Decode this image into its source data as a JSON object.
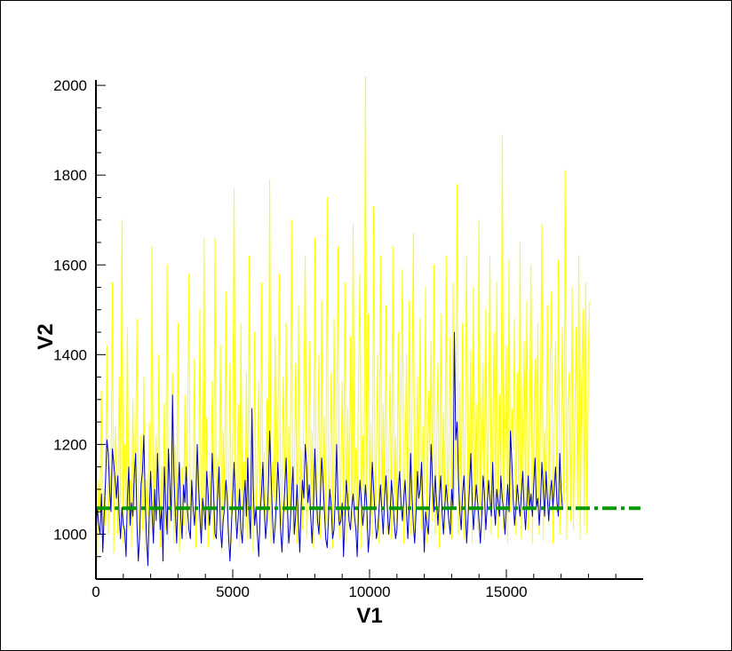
{
  "chart_data": {
    "type": "line",
    "title": "",
    "xlabel": "V1",
    "ylabel": "V2",
    "xlim": [
      0,
      20000
    ],
    "ylim": [
      900,
      2020
    ],
    "xticks": [
      0,
      5000,
      10000,
      15000
    ],
    "yticks": [
      1000,
      1200,
      1400,
      1600,
      1800,
      2000
    ],
    "grid": false,
    "series": [
      {
        "key": "raw",
        "color": "#ffff00",
        "style": "solid",
        "x_start": 0,
        "x_step": 50,
        "values": [
          1280,
          940,
          1120,
          1050,
          1320,
          960,
          1100,
          1020,
          1420,
          1000,
          1150,
          1080,
          1560,
          960,
          1240,
          1110,
          1000,
          1350,
          1040,
          1700,
          980,
          1200,
          1060,
          1460,
          1010,
          1120,
          970,
          1300,
          1050,
          1180,
          1480,
          990,
          1090,
          1220,
          1010,
          1350,
          960,
          1120,
          1040,
          1250,
          1000,
          1640,
          980,
          1100,
          1220,
          1050,
          1400,
          970,
          1150,
          1030,
          1290,
          1010,
          1600,
          990,
          1110,
          1060,
          1360,
          980,
          1200,
          1040,
          1470,
          960,
          1090,
          1150,
          1020,
          1310,
          990,
          1240,
          1580,
          1000,
          1120,
          1060,
          1390,
          970,
          1180,
          1030,
          1500,
          990,
          1080,
          1660,
          1010,
          1260,
          970,
          1140,
          1050,
          1340,
          990,
          1660,
          1020,
          1170,
          1080,
          1420,
          960,
          1230,
          1060,
          1540,
          1000,
          1110,
          1380,
          980,
          1200,
          1770,
          1030,
          1090,
          1290,
          970,
          1470,
          1050,
          1160,
          1010,
          1360,
          990,
          1620,
          1080,
          1220,
          960,
          1450,
          1040,
          1130,
          1340,
          1000,
          1560,
          1070,
          1180,
          990,
          1300,
          1030,
          1790,
          980,
          1160,
          1070,
          1440,
          1010,
          1220,
          1580,
          990,
          1100,
          1350,
          1050,
          1470,
          970,
          1240,
          1060,
          1700,
          1000,
          1140,
          1380,
          980,
          1510,
          1050,
          1190,
          1010,
          1320,
          1620,
          990,
          1110,
          1430,
          1060,
          1230,
          970,
          1660,
          1020,
          1170,
          1400,
          990,
          1520,
          1050,
          1260,
          1000,
          1750,
          1030,
          1150,
          1360,
          970,
          1480,
          1080,
          1210,
          1640,
          990,
          1120,
          1340,
          1040,
          1560,
          980,
          1280,
          1060,
          1440,
          1010,
          1690,
          1050,
          1190,
          1000,
          1370,
          1580,
          970,
          1220,
          1080,
          2030,
          1010,
          1490,
          1040,
          1250,
          990,
          1730,
          1060,
          1180,
          1400,
          980,
          1620,
          1030,
          1290,
          1070,
          1510,
          1000,
          1170,
          1360,
          990,
          1640,
          1050,
          1220,
          1010,
          1450,
          1080,
          1310,
          1590,
          980,
          1160,
          1400,
          1040,
          1520,
          1000,
          1270,
          1670,
          990,
          1130,
          1350,
          1060,
          1480,
          1010,
          1240,
          1090,
          1550,
          980,
          1320,
          1180,
          1430,
          1030,
          1600,
          1000,
          1210,
          1380,
          970,
          1490,
          1060,
          1270,
          1010,
          1620,
          1040,
          1170,
          1440,
          990,
          1560,
          1080,
          1230,
          1780,
          1000,
          1340,
          1050,
          1470,
          990,
          1250,
          1620,
          1020,
          1180,
          1410,
          980,
          1550,
          1070,
          1290,
          1010,
          1700,
          1040,
          1200,
          1380,
          990,
          1500,
          1060,
          1260,
          1620,
          1000,
          1170,
          1450,
          1030,
          1560,
          990,
          1310,
          1080,
          1890,
          1010,
          1240,
          1420,
          980,
          1610,
          1050,
          1280,
          1190,
          1480,
          1000,
          1360,
          1070,
          1650,
          990,
          1220,
          1430,
          1040,
          1520,
          1010,
          1270,
          1600,
          980,
          1190,
          1390,
          1060,
          1470,
          1000,
          1310,
          1690,
          990,
          1230,
          1080,
          1510,
          1020,
          1370,
          1540,
          980,
          1250,
          1430,
          1050,
          1610,
          1000,
          1200,
          1460,
          1070,
          1810,
          990,
          1280,
          1360,
          1030,
          1550,
          1010,
          1240,
          1460,
          1060,
          1620,
          990,
          1330,
          1500,
          1020,
          1560,
          1000,
          1420,
          1520
        ]
      },
      {
        "key": "smoothed",
        "color": "#0000cc",
        "style": "solid",
        "x_start": 0,
        "x_step": 50,
        "values": [
          1000,
          1060,
          1020,
          1000,
          1090,
          960,
          1040,
          1120,
          1210,
          1180,
          1100,
          1050,
          1190,
          1160,
          1120,
          1080,
          1130,
          1040,
          990,
          1060,
          1020,
          1010,
          950,
          1080,
          1150,
          1020,
          1070,
          1040,
          1130,
          1180,
          1020,
          940,
          1000,
          1110,
          1140,
          1220,
          1080,
          990,
          930,
          1050,
          1140,
          1050,
          980,
          1100,
          1030,
          1180,
          1090,
          1010,
          1060,
          940,
          1150,
          1070,
          1000,
          1190,
          1110,
          1030,
          1310,
          1130,
          1050,
          980,
          1090,
          1160,
          1040,
          990,
          1110,
          1070,
          1150,
          1050,
          1010,
          990,
          1120,
          1060,
          1020,
          1070,
          1200,
          1110,
          1040,
          980,
          1080,
          1050,
          1010,
          1140,
          1090,
          1020,
          1060,
          1180,
          1100,
          1000,
          990,
          1090,
          1150,
          1010,
          970,
          1030,
          1060,
          1120,
          1080,
          990,
          940,
          1020,
          1080,
          1160,
          1060,
          990,
          1040,
          1100,
          1010,
          980,
          1070,
          1120,
          1040,
          1170,
          1050,
          990,
          1280,
          1100,
          1020,
          1060,
          1000,
          950,
          1050,
          1090,
          1160,
          1060,
          990,
          1030,
          1100,
          1230,
          1130,
          1040,
          980,
          1020,
          1080,
          1160,
          1090,
          1010,
          960,
          1040,
          1100,
          1170,
          1060,
          980,
          1020,
          1090,
          1150,
          1000,
          1040,
          1110,
          1030,
          960,
          1060,
          1120,
          1080,
          1200,
          1150,
          1070,
          1110,
          1040,
          980,
          1060,
          1190,
          1100,
          1030,
          1000,
          1080,
          1170,
          1120,
          1050,
          990,
          970,
          1040,
          1100,
          1060,
          990,
          1010,
          1080,
          1200,
          1060,
          1020,
          1030,
          1070,
          950,
          1040,
          1120,
          1080,
          1030,
          1010,
          1060,
          1090,
          1040,
          1010,
          950,
          1060,
          1120,
          1070,
          1020,
          1050,
          1110,
          1060,
          960,
          1000,
          1080,
          1160,
          1100,
          1040,
          990,
          1010,
          1060,
          1110,
          1050,
          1000,
          1080,
          1130,
          1060,
          1000,
          1040,
          1120,
          1080,
          1030,
          990,
          1010,
          1100,
          1140,
          1070,
          1030,
          1080,
          1120,
          1050,
          990,
          1060,
          1180,
          1090,
          1020,
          980,
          1050,
          1140,
          1080,
          1100,
          1160,
          1060,
          960,
          1050,
          1020,
          1000,
          1080,
          1200,
          1120,
          1050,
          1130,
          1070,
          1020,
          1080,
          1130,
          1050,
          1000,
          1060,
          1110,
          1070,
          1030,
          1000,
          1100,
          1060,
          1450,
          1210,
          1250,
          1120,
          1050,
          1010,
          1090,
          1130,
          1060,
          980,
          1040,
          1100,
          1180,
          1080,
          1010,
          1060,
          1110,
          1070,
          1030,
          980,
          1040,
          1130,
          1090,
          1010,
          1060,
          1120,
          1080,
          1040,
          1160,
          1060,
          1020,
          1100,
          1070,
          1040,
          1130,
          1080,
          1050,
          1000,
          1060,
          1110,
          1050,
          1230,
          1160,
          1080,
          1020,
          1060,
          1110,
          1070,
          1040,
          1090,
          1140,
          1060,
          1010,
          1070,
          1130,
          1060,
          1090,
          1040,
          1110,
          1170,
          1060,
          1080,
          1020,
          1070,
          1160,
          1100,
          1040,
          1140,
          1080,
          1030,
          1090,
          1120,
          1060,
          1100,
          1150,
          1070,
          1040,
          1180,
          1100,
          1060
        ]
      },
      {
        "key": "mean",
        "color": "#009900",
        "style": "dashdot",
        "x": [
          0,
          19900
        ],
        "y": [
          1058,
          1058
        ]
      }
    ]
  }
}
